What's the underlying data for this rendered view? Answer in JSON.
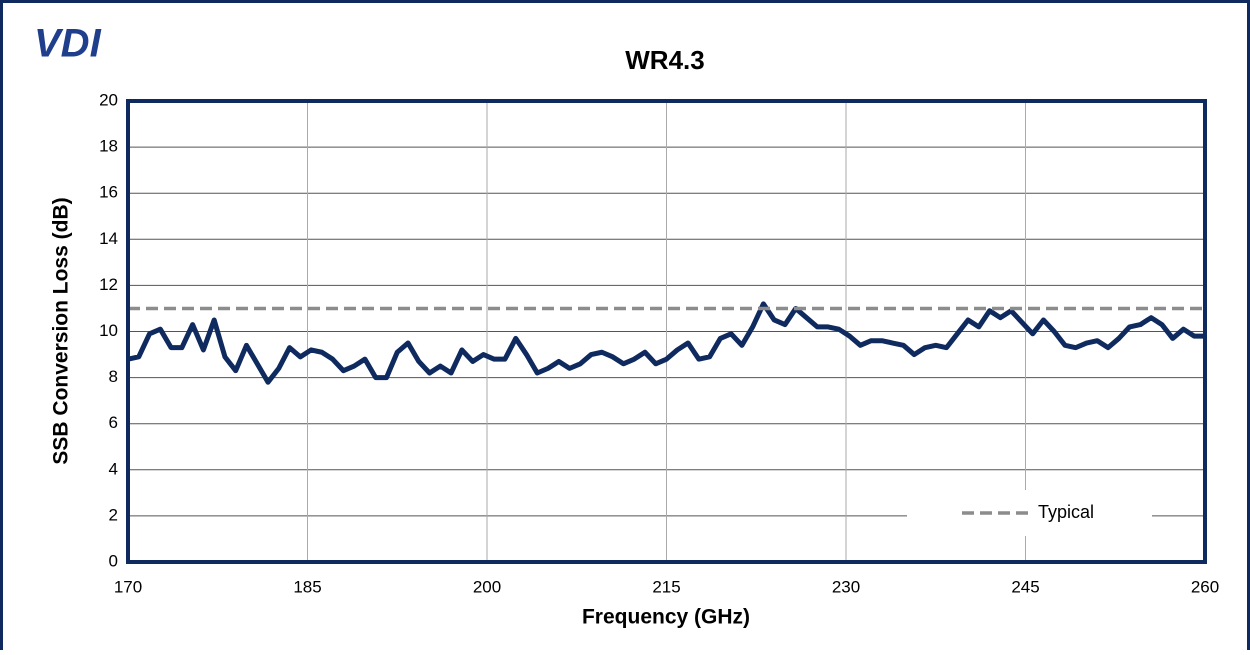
{
  "chart_data": {
    "type": "line",
    "logo": "VDI",
    "title": "WR4.3",
    "x_label": "Frequency (GHz)",
    "y_label": "SSB Conversion Loss (dB)",
    "x": [
      170,
      170.9,
      171.8,
      172.7,
      173.6,
      174.5,
      175.4,
      176.3,
      177.2,
      178.1,
      179,
      179.9,
      180.8,
      181.7,
      182.6,
      183.5,
      184.4,
      185.3,
      186.2,
      187.1,
      188,
      188.9,
      189.8,
      190.7,
      191.6,
      192.5,
      193.4,
      194.3,
      195.2,
      196.1,
      197,
      197.9,
      198.8,
      199.7,
      200.6,
      201.5,
      202.4,
      203.3,
      204.2,
      205.1,
      206,
      206.9,
      207.8,
      208.7,
      209.6,
      210.5,
      211.4,
      212.3,
      213.2,
      214.1,
      215,
      215.9,
      216.8,
      217.7,
      218.6,
      219.5,
      220.4,
      221.3,
      222.2,
      223.1,
      224,
      224.9,
      225.8,
      226.7,
      227.6,
      228.5,
      229.4,
      230.3,
      231.2,
      232.1,
      233,
      233.9,
      234.8,
      235.7,
      236.6,
      237.5,
      238.4,
      239.3,
      240.2,
      241.1,
      242,
      242.9,
      243.8,
      244.7,
      245.6,
      246.5,
      247.4,
      248.3,
      249.2,
      250.1,
      251,
      251.9,
      252.8,
      253.7,
      254.6,
      255.5,
      256.4,
      257.3,
      258.2,
      259.1,
      260
    ],
    "series": [
      {
        "color": "#0f2a5e",
        "values": [
          8.8,
          8.9,
          9.9,
          10.1,
          9.3,
          9.3,
          10.3,
          9.2,
          10.5,
          8.9,
          8.3,
          9.4,
          8.6,
          7.8,
          8.4,
          9.3,
          8.9,
          9.2,
          9.1,
          8.8,
          8.3,
          8.5,
          8.8,
          8.0,
          8.0,
          9.1,
          9.5,
          8.7,
          8.2,
          8.5,
          8.2,
          9.2,
          8.7,
          9.0,
          8.8,
          8.8,
          9.7,
          9.0,
          8.2,
          8.4,
          8.7,
          8.4,
          8.6,
          9.0,
          9.1,
          8.9,
          8.6,
          8.8,
          9.1,
          8.6,
          8.8,
          9.2,
          9.5,
          8.8,
          8.9,
          9.7,
          9.9,
          9.4,
          10.2,
          11.2,
          10.5,
          10.3,
          11.0,
          10.6,
          10.2,
          10.2,
          10.1,
          9.8,
          9.4,
          9.6,
          9.6,
          9.5,
          9.4,
          9.0,
          9.3,
          9.4,
          9.3,
          9.9,
          10.5,
          10.2,
          10.9,
          10.6,
          10.9,
          10.4,
          9.9,
          10.5,
          10.0,
          9.4,
          9.3,
          9.5,
          9.6,
          9.3,
          9.7,
          10.2,
          10.3,
          10.6,
          10.3,
          9.7,
          10.1,
          9.8,
          9.8
        ]
      },
      {
        "name": "Typical",
        "color": "#8c8c8c",
        "dashed": true,
        "x": [
          170,
          260
        ],
        "values": [
          11,
          11
        ]
      }
    ],
    "xlim": [
      170,
      260
    ],
    "xticks": [
      170,
      185,
      200,
      215,
      230,
      245,
      260
    ],
    "ylim": [
      0,
      20
    ],
    "yticks": [
      0,
      2,
      4,
      6,
      8,
      10,
      12,
      14,
      16,
      18,
      20
    ],
    "grid": true,
    "legend": "lower right"
  }
}
